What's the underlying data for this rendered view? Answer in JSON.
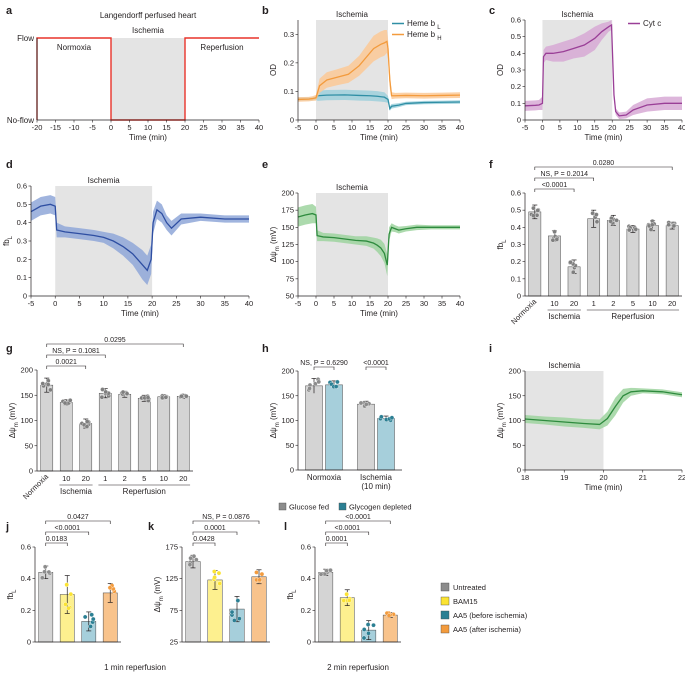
{
  "chart_data": [
    {
      "id": "a",
      "type": "line",
      "panel_label": "a",
      "title": "Langendorff perfused heart",
      "xlabel": "Time (min)",
      "xlim": [
        -20,
        40
      ],
      "xticks": [
        -20,
        -15,
        -10,
        -5,
        0,
        5,
        10,
        15,
        20,
        25,
        30,
        35,
        40
      ],
      "ycategories": [
        "No-flow",
        "Flow"
      ],
      "phases": [
        "Normoxia",
        "Ischemia",
        "Reperfusion"
      ],
      "shade": [
        0,
        20
      ],
      "series": [
        {
          "name": "flow",
          "color": "#e8332a",
          "x": [
            -20,
            -20,
            0,
            0,
            20,
            20,
            40
          ],
          "y": [
            0,
            1,
            1,
            0,
            0,
            1,
            1
          ]
        }
      ]
    },
    {
      "id": "b",
      "type": "line",
      "panel_label": "b",
      "xlabel": "Time (min)",
      "ylabel": "OD",
      "xlim": [
        -5,
        40
      ],
      "ylim": [
        0,
        0.35
      ],
      "xticks": [
        -5,
        0,
        5,
        10,
        15,
        20,
        25,
        30,
        35,
        40
      ],
      "yticks": [
        0,
        0.1,
        0.2,
        0.3
      ],
      "shade": [
        0,
        20
      ],
      "shade_label": "Ischemia",
      "series": [
        {
          "name": "Heme b",
          "sub": "L",
          "color": "#2f8fa5",
          "band_color": "#9fd0dc",
          "x": [
            -5,
            -2,
            -1,
            0,
            0.5,
            3,
            8,
            12,
            15,
            17,
            19,
            20,
            20.5,
            21,
            23,
            25,
            30,
            35,
            40
          ],
          "y": [
            0.073,
            0.074,
            0.074,
            0.076,
            0.085,
            0.087,
            0.088,
            0.086,
            0.085,
            0.083,
            0.08,
            0.072,
            0.04,
            0.048,
            0.052,
            0.058,
            0.061,
            0.062,
            0.063
          ],
          "err": [
            0.006,
            0.006,
            0.006,
            0.006,
            0.018,
            0.018,
            0.018,
            0.018,
            0.018,
            0.018,
            0.017,
            0.012,
            0.008,
            0.008,
            0.007,
            0.006,
            0.006,
            0.006,
            0.006
          ]
        },
        {
          "name": "Heme b",
          "sub": "H",
          "color": "#f39b3d",
          "band_color": "#fbc996",
          "x": [
            -5,
            -2,
            -1,
            0,
            1,
            3,
            6,
            9,
            12,
            14,
            16,
            18,
            19,
            19.7,
            20,
            20.5,
            21,
            22,
            25,
            30,
            35,
            40
          ],
          "y": [
            0.072,
            0.073,
            0.075,
            0.078,
            0.12,
            0.14,
            0.15,
            0.16,
            0.19,
            0.22,
            0.25,
            0.265,
            0.27,
            0.275,
            0.25,
            0.14,
            0.085,
            0.085,
            0.086,
            0.085,
            0.086,
            0.087
          ],
          "err": [
            0.008,
            0.008,
            0.008,
            0.01,
            0.025,
            0.027,
            0.028,
            0.03,
            0.035,
            0.04,
            0.045,
            0.045,
            0.045,
            0.04,
            0.035,
            0.03,
            0.012,
            0.01,
            0.01,
            0.01,
            0.01,
            0.01
          ]
        }
      ]
    },
    {
      "id": "c",
      "type": "line",
      "panel_label": "c",
      "xlabel": "Time (min)",
      "ylabel": "OD",
      "xlim": [
        -5,
        40
      ],
      "ylim": [
        0,
        0.6
      ],
      "xticks": [
        -5,
        0,
        5,
        10,
        15,
        20,
        25,
        30,
        35,
        40
      ],
      "yticks": [
        0,
        0.1,
        0.2,
        0.3,
        0.4,
        0.5,
        0.6
      ],
      "shade": [
        0,
        20
      ],
      "shade_label": "Ischemia",
      "series": [
        {
          "name": "Cyt c",
          "color": "#9a3f97",
          "band_color": "#d7a9d5",
          "x": [
            -5,
            -2,
            -1,
            0,
            0.3,
            1,
            3,
            6,
            9,
            12,
            15,
            17,
            19,
            19.8,
            20,
            20.5,
            21,
            22,
            24,
            26,
            30,
            35,
            40
          ],
          "y": [
            0.085,
            0.088,
            0.09,
            0.1,
            0.38,
            0.4,
            0.4,
            0.41,
            0.43,
            0.45,
            0.49,
            0.53,
            0.56,
            0.57,
            0.45,
            0.15,
            0.05,
            0.025,
            0.03,
            0.06,
            0.09,
            0.1,
            0.1
          ],
          "err": [
            0.03,
            0.03,
            0.03,
            0.04,
            0.04,
            0.04,
            0.05,
            0.06,
            0.06,
            0.07,
            0.07,
            0.05,
            0.03,
            0.03,
            0.04,
            0.03,
            0.02,
            0.02,
            0.02,
            0.03,
            0.04,
            0.04,
            0.04
          ]
        }
      ]
    },
    {
      "id": "d",
      "type": "line",
      "panel_label": "d",
      "xlabel": "Time (min)",
      "ylabel": "fb",
      "ylabel_sub": "L",
      "xlim": [
        -5,
        40
      ],
      "ylim": [
        0,
        0.6
      ],
      "xticks": [
        -5,
        0,
        5,
        10,
        15,
        20,
        25,
        30,
        35,
        40
      ],
      "yticks": [
        0,
        0.1,
        0.2,
        0.3,
        0.4,
        0.5,
        0.6
      ],
      "shade": [
        0,
        20
      ],
      "shade_label": "Ischemia",
      "series": [
        {
          "name": "fbL",
          "color": "#2e4ea2",
          "band_color": "#8fa7d8",
          "x": [
            -5,
            -3,
            -1,
            0,
            0.3,
            2,
            5,
            8,
            10,
            12,
            14,
            16,
            17,
            18,
            19,
            19.8,
            20.2,
            21,
            22,
            23,
            24,
            26,
            30,
            35,
            40
          ],
          "y": [
            0.46,
            0.49,
            0.5,
            0.49,
            0.36,
            0.35,
            0.34,
            0.33,
            0.32,
            0.3,
            0.27,
            0.23,
            0.2,
            0.17,
            0.14,
            0.2,
            0.4,
            0.47,
            0.45,
            0.4,
            0.37,
            0.42,
            0.43,
            0.42,
            0.42
          ],
          "err": [
            0.05,
            0.05,
            0.05,
            0.05,
            0.04,
            0.03,
            0.03,
            0.03,
            0.03,
            0.04,
            0.05,
            0.06,
            0.07,
            0.08,
            0.08,
            0.08,
            0.06,
            0.05,
            0.05,
            0.04,
            0.04,
            0.03,
            0.02,
            0.02,
            0.02
          ]
        }
      ]
    },
    {
      "id": "e",
      "type": "line",
      "panel_label": "e",
      "xlabel": "Time (min)",
      "ylabel": "Δψ",
      "ylabel_sub": "m",
      "ylabel_unit": " (mV)",
      "xlim": [
        -5,
        40
      ],
      "ylim": [
        50,
        200
      ],
      "xticks": [
        -5,
        0,
        5,
        10,
        15,
        20,
        25,
        30,
        35,
        40
      ],
      "yticks": [
        50,
        75,
        100,
        125,
        150,
        175,
        200
      ],
      "shade": [
        0,
        20
      ],
      "shade_label": "Ischemia",
      "series": [
        {
          "name": "dpsi",
          "color": "#2e8b3e",
          "band_color": "#9ed39f",
          "x": [
            -5,
            -3,
            -1,
            0,
            0.3,
            2,
            5,
            8,
            11,
            14,
            16,
            17,
            18,
            19,
            19.8,
            20.3,
            21,
            22,
            23,
            25,
            28,
            32,
            36,
            40
          ],
          "y": [
            165,
            168,
            170,
            168,
            138,
            136,
            135,
            133,
            131,
            130,
            127,
            124,
            120,
            112,
            95,
            140,
            150,
            148,
            146,
            148,
            150,
            150,
            150,
            150
          ],
          "err": [
            14,
            14,
            14,
            12,
            8,
            6,
            6,
            6,
            6,
            7,
            8,
            10,
            12,
            14,
            16,
            10,
            6,
            5,
            5,
            4,
            4,
            3,
            3,
            3
          ]
        }
      ]
    },
    {
      "id": "f",
      "type": "bar",
      "panel_label": "f",
      "ylabel": "fb",
      "ylabel_sub": "L",
      "ylim": [
        0,
        0.6
      ],
      "yticks": [
        0,
        0.1,
        0.2,
        0.3,
        0.4,
        0.5,
        0.6
      ],
      "categories": [
        "Normoxia",
        "10",
        "20",
        "1",
        "2",
        "5",
        "10",
        "20"
      ],
      "values": [
        0.49,
        0.35,
        0.17,
        0.45,
        0.44,
        0.39,
        0.41,
        0.41
      ],
      "errors": [
        0.04,
        0.03,
        0.04,
        0.05,
        0.03,
        0.02,
        0.03,
        0.02
      ],
      "groups": [
        {
          "label": "Ischemia",
          "from": 1,
          "to": 2
        },
        {
          "label": "Reperfusion",
          "from": 3,
          "to": 7
        }
      ],
      "comparisons": [
        {
          "from": 0,
          "to": 2,
          "label": "<0.0001"
        },
        {
          "from": 0,
          "to": 3,
          "label": "NS, P = 0.2014"
        },
        {
          "from": 0,
          "to": 7,
          "label": "0.0280"
        }
      ]
    },
    {
      "id": "g",
      "type": "bar",
      "panel_label": "g",
      "ylabel": "Δψ",
      "ylabel_sub": "m",
      "ylabel_unit": " (mV)",
      "ylim": [
        0,
        200
      ],
      "yticks": [
        0,
        50,
        100,
        150,
        200
      ],
      "categories": [
        "Normoxia",
        "10",
        "20",
        "1",
        "2",
        "5",
        "10",
        "20"
      ],
      "values": [
        170,
        136,
        94,
        154,
        152,
        144,
        147,
        148
      ],
      "errors": [
        14,
        5,
        9,
        9,
        6,
        6,
        4,
        4
      ],
      "groups": [
        {
          "label": "Ischemia",
          "from": 1,
          "to": 2
        },
        {
          "label": "Reperfusion",
          "from": 3,
          "to": 7
        }
      ],
      "comparisons": [
        {
          "from": 0,
          "to": 2,
          "label": "0.0021"
        },
        {
          "from": 0,
          "to": 3,
          "label": "NS, P = 0.1081"
        },
        {
          "from": 0,
          "to": 7,
          "label": "0.0295"
        }
      ]
    },
    {
      "id": "h",
      "type": "bar",
      "panel_label": "h",
      "ylabel": "Δψ",
      "ylabel_sub": "m",
      "ylabel_unit": " (mV)",
      "ylim": [
        0,
        200
      ],
      "yticks": [
        0,
        50,
        100,
        150,
        200
      ],
      "groups": [
        "Normoxia",
        "Ischemia\n(10 min)"
      ],
      "series": [
        {
          "name": "Glucose fed",
          "color": "#d4d4d4",
          "dot": "#8c8c8c",
          "values": [
            170,
            133
          ],
          "errors": [
            15,
            6
          ]
        },
        {
          "name": "Glycogen depleted",
          "color": "#a6cfdb",
          "dot": "#2b7f93",
          "values": [
            172,
            104
          ],
          "errors": [
            8,
            5
          ]
        }
      ],
      "comparisons": [
        {
          "group": 0,
          "label": "NS, P = 0.6290"
        },
        {
          "group": 1,
          "label": "<0.0001"
        }
      ]
    },
    {
      "id": "i",
      "type": "line",
      "panel_label": "i",
      "xlabel": "Time (min)",
      "ylabel": "Δψ",
      "ylabel_sub": "m",
      "ylabel_unit": " (mV)",
      "xlim": [
        18,
        22
      ],
      "ylim": [
        0,
        200
      ],
      "xticks": [
        18,
        19,
        20,
        21,
        22
      ],
      "yticks": [
        0,
        50,
        100,
        150,
        200
      ],
      "shade": [
        18,
        20
      ],
      "shade_label": "Ischemia",
      "series": [
        {
          "name": "dpsi",
          "color": "#2e8b3e",
          "band_color": "#9ed39f",
          "x": [
            18,
            18.5,
            19,
            19.5,
            19.9,
            20.1,
            20.3,
            20.5,
            20.7,
            21,
            21.5,
            22
          ],
          "y": [
            103,
            100,
            97,
            94,
            92,
            104,
            128,
            150,
            158,
            160,
            158,
            152
          ],
          "err": [
            8,
            8,
            9,
            9,
            10,
            14,
            18,
            14,
            8,
            5,
            5,
            5
          ]
        }
      ]
    },
    {
      "id": "j",
      "type": "bar",
      "panel_label": "j",
      "ylabel": "fb",
      "ylabel_sub": "L",
      "ylim": [
        0,
        0.6
      ],
      "yticks": [
        0,
        0.2,
        0.4,
        0.6
      ],
      "categories": [
        "Untreated",
        "BAM15",
        "AA5 (before ischemia)",
        "AA5 (after ischemia)"
      ],
      "values": [
        0.44,
        0.3,
        0.13,
        0.31
      ],
      "errors": [
        0.04,
        0.12,
        0.06,
        0.06
      ],
      "xlabel": "1 min reperfusion",
      "comparisons": [
        {
          "from": 0,
          "to": 1,
          "label": "0.0183"
        },
        {
          "from": 0,
          "to": 2,
          "label": "<0.0001"
        },
        {
          "from": 0,
          "to": 3,
          "label": "0.0427"
        }
      ]
    },
    {
      "id": "k",
      "type": "bar",
      "panel_label": "k",
      "ylabel": "Δψ",
      "ylabel_sub": "m",
      "ylabel_unit": " (mV)",
      "ylim": [
        25,
        175
      ],
      "yticks": [
        25,
        75,
        125,
        175
      ],
      "categories": [
        "Untreated",
        "BAM15",
        "AA5 (before ischemia)",
        "AA5 (after ischemia)"
      ],
      "values": [
        152,
        123,
        77,
        128
      ],
      "errors": [
        10,
        15,
        20,
        11
      ],
      "comparisons": [
        {
          "from": 0,
          "to": 1,
          "label": "0.0428"
        },
        {
          "from": 0,
          "to": 2,
          "label": "0.0001"
        },
        {
          "from": 0,
          "to": 3,
          "label": "NS, P = 0.0876"
        }
      ]
    },
    {
      "id": "l",
      "type": "bar",
      "panel_label": "l",
      "ylabel": "fb",
      "ylabel_sub": "L",
      "ylim": [
        0,
        0.6
      ],
      "yticks": [
        0,
        0.2,
        0.4,
        0.6
      ],
      "categories": [
        "Untreated",
        "BAM15",
        "AA5 (before ischemia)",
        "AA5 (after ischemia)"
      ],
      "values": [
        0.44,
        0.28,
        0.075,
        0.17
      ],
      "errors": [
        0.02,
        0.05,
        0.06,
        0.015
      ],
      "xlabel": "2 min reperfusion",
      "comparisons": [
        {
          "from": 0,
          "to": 1,
          "label": "0.0001"
        },
        {
          "from": 0,
          "to": 2,
          "label": "<0.0001"
        },
        {
          "from": 0,
          "to": 3,
          "label": "<0.0001"
        }
      ]
    }
  ],
  "treatment_legend": [
    {
      "name": "Untreated",
      "color": "#8c8c8c"
    },
    {
      "name": "BAM15",
      "color": "#fbe332"
    },
    {
      "name": "AA5 (before ischemia)",
      "color": "#2b7f93"
    },
    {
      "name": "AA5 (after ischemia)",
      "color": "#f39b3d"
    }
  ],
  "treatment_fills": [
    "#d4d4d4",
    "#fdf08f",
    "#a6cfdb",
    "#f8c38c"
  ]
}
